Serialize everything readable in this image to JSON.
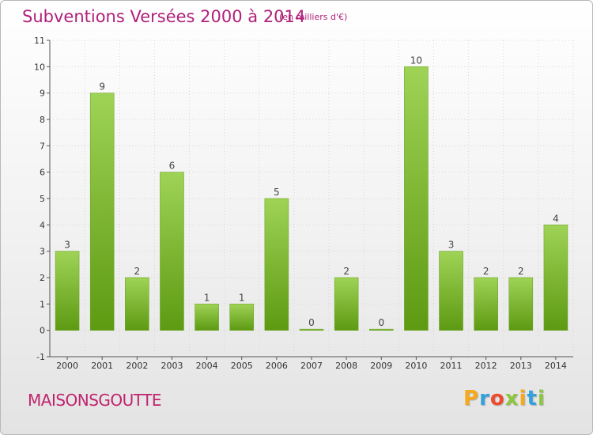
{
  "header": {
    "title": "Subventions Versées 2000 à 2014",
    "subtitle": "(en milliers d'€)"
  },
  "location": "MAISONSGOUTTE",
  "logo": {
    "text": "Proxiti",
    "letters": [
      "P",
      "r",
      "o",
      "x",
      "i",
      "t",
      "i"
    ],
    "colors": [
      "#f7a81b",
      "#33a2dc",
      "#ef4a2c",
      "#8dc63f",
      "#f7a81b",
      "#33a2dc",
      "#8dc63f"
    ]
  },
  "colors": {
    "title": "#b0217a",
    "bar_top": "#9fd356",
    "bar_bottom": "#5d9a12",
    "axis": "#555555",
    "grid": "#d6d6d6"
  },
  "chart_data": {
    "type": "bar",
    "categories": [
      "2000",
      "2001",
      "2002",
      "2003",
      "2004",
      "2005",
      "2006",
      "2007",
      "2008",
      "2009",
      "2010",
      "2011",
      "2012",
      "2013",
      "2014"
    ],
    "values": [
      3,
      9,
      2,
      6,
      1,
      1,
      5,
      0,
      2,
      0,
      10,
      3,
      2,
      2,
      4
    ],
    "data_labels": [
      "3",
      "9",
      "2",
      "6",
      "1",
      "1",
      "5",
      "0",
      "2",
      "0",
      "10",
      "3",
      "2",
      "2",
      "4"
    ],
    "ylim": [
      -1,
      11
    ],
    "y_ticks": [
      "-1",
      "0",
      "1",
      "2",
      "3",
      "4",
      "5",
      "6",
      "7",
      "8",
      "9",
      "10",
      "11"
    ],
    "grid": true,
    "title": "Subventions Versées 2000 à 2014",
    "xlabel": "",
    "ylabel": ""
  }
}
